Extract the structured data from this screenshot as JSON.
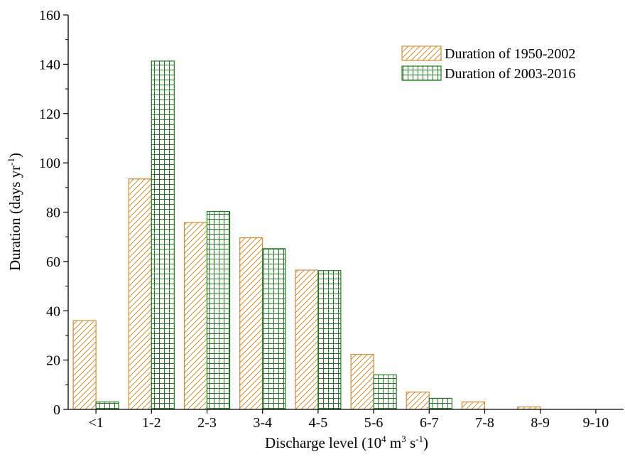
{
  "chart_data": {
    "type": "bar",
    "title": "",
    "xlabel": {
      "main": "Discharge level (10",
      "sup1": "4",
      "mid1": " m",
      "sup2": "3",
      "mid2": " s",
      "sup3": "-1",
      "end": ")"
    },
    "ylabel": {
      "main": "Duration (days yr",
      "sup": "-1",
      "end": ")"
    },
    "categories": [
      "<1",
      "1-2",
      "2-3",
      "3-4",
      "4-5",
      "5-6",
      "6-7",
      "7-8",
      "8-9",
      "9-10"
    ],
    "series": [
      {
        "name": "Duration of 1950-2002",
        "values": [
          36,
          93.5,
          75.8,
          69.6,
          56.5,
          22.3,
          7.0,
          3.0,
          1.0,
          0
        ],
        "color": "#d58a2a",
        "pattern": "diagonal-hatch"
      },
      {
        "name": "Duration of 2003-2016",
        "values": [
          3.0,
          141.3,
          80.3,
          65.2,
          56.3,
          14.0,
          4.5,
          0,
          0,
          0
        ],
        "color": "#1e7b1e",
        "pattern": "grid"
      }
    ],
    "ylim": [
      0,
      160
    ],
    "yticks": [
      0,
      20,
      40,
      60,
      80,
      100,
      120,
      140,
      160
    ],
    "grid": false,
    "legend_position": "top-right"
  }
}
